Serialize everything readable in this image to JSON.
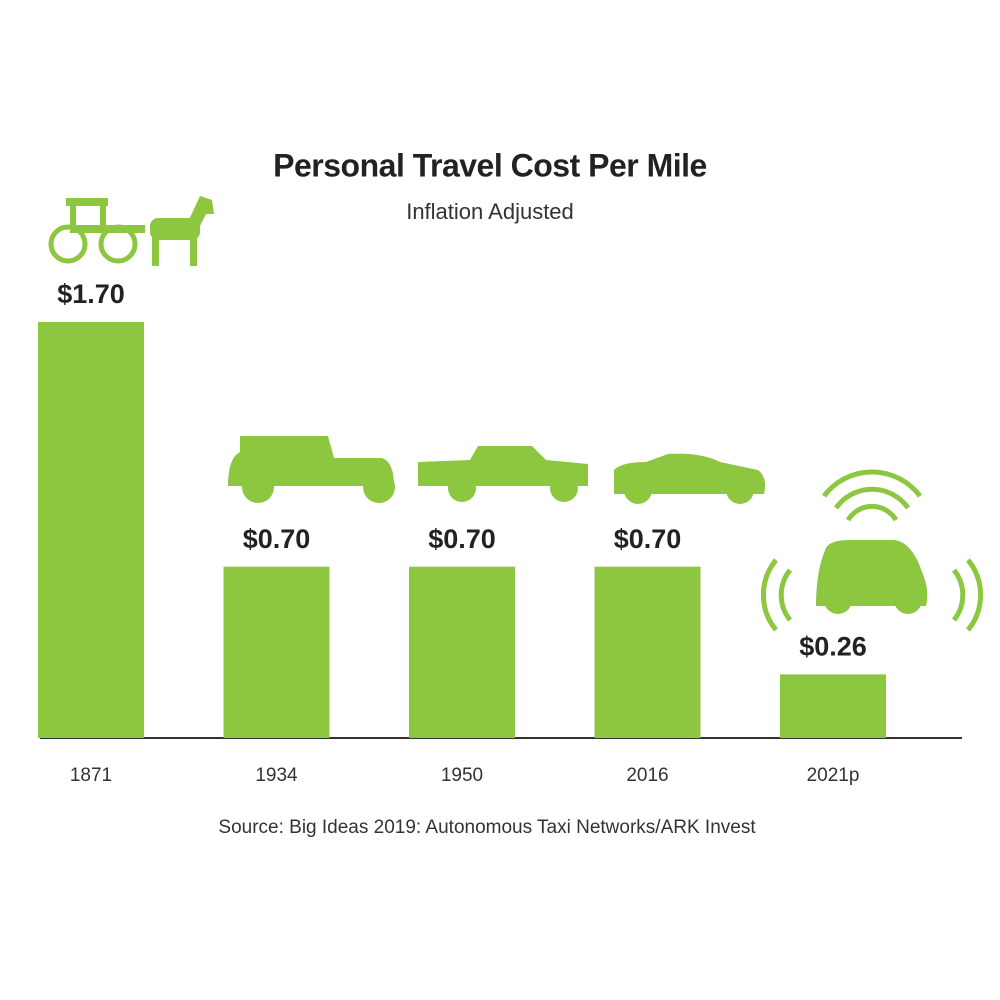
{
  "chart_data": {
    "type": "bar",
    "title": "Personal Travel Cost Per Mile",
    "subtitle": "Inflation Adjusted",
    "categories": [
      "1871",
      "1934",
      "1950",
      "2016",
      "2021p"
    ],
    "values": [
      1.7,
      0.7,
      0.7,
      0.7,
      0.26
    ],
    "value_labels": [
      "$1.70",
      "$0.70",
      "$0.70",
      "$0.70",
      "$0.26"
    ],
    "color": "#8dc63f",
    "source": "Source: Big Ideas 2019: Autonomous Taxi Networks/ARK Invest"
  }
}
